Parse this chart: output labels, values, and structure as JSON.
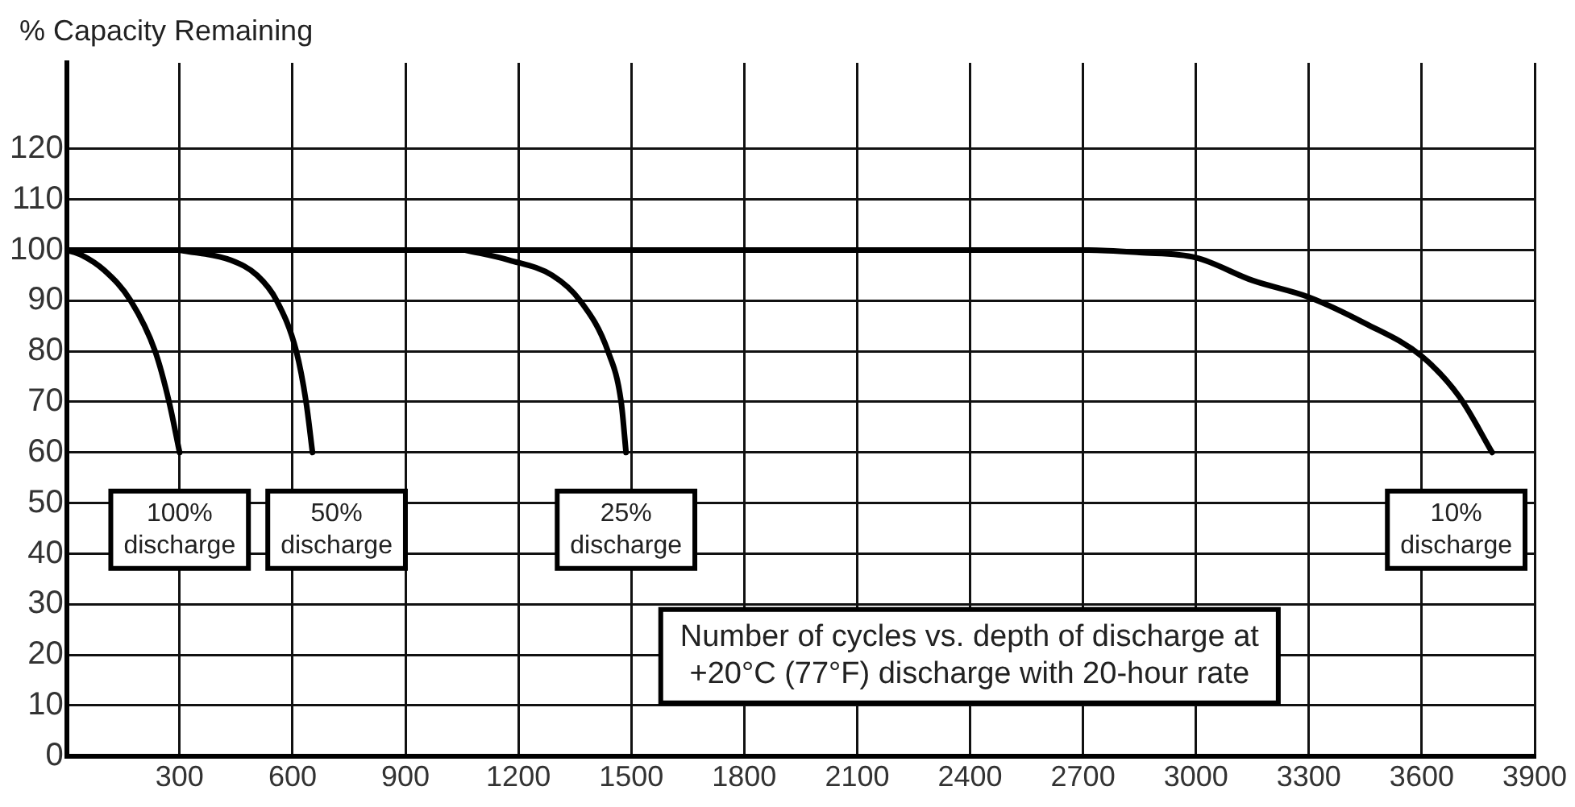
{
  "chart_data": {
    "type": "line",
    "ylabel": "% Capacity Remaining",
    "xlim": [
      0,
      3900
    ],
    "ylim": [
      0,
      137
    ],
    "xticks": [
      {
        "value": 0,
        "label": null
      },
      300,
      600,
      900,
      1200,
      1500,
      1800,
      2100,
      2400,
      2700,
      3000,
      3300,
      3600,
      3900
    ],
    "yticks": [
      0,
      10,
      20,
      30,
      40,
      50,
      60,
      70,
      80,
      90,
      100,
      110,
      120
    ],
    "grid": true,
    "legend": false,
    "marker": "none",
    "line_style": "solid",
    "series": [
      {
        "name": "100% discharge",
        "color": "#000000",
        "x": [
          0,
          40,
          100,
          170,
          235,
          272,
          300
        ],
        "values": [
          100,
          99,
          96,
          90,
          80,
          70,
          60
        ]
      },
      {
        "name": "50% discharge",
        "color": "#000000",
        "x": [
          300,
          436,
          506,
          558,
          610,
          636,
          653
        ],
        "values": [
          100,
          98,
          95,
          90,
          80,
          70,
          60
        ]
      },
      {
        "name": "25% discharge",
        "color": "#000000",
        "x": [
          1059,
          1176,
          1290,
          1364,
          1438,
          1473,
          1486
        ],
        "values": [
          100,
          98,
          95,
          90,
          80,
          70,
          60
        ]
      },
      {
        "name": "10% discharge",
        "color": "#000000",
        "x": [
          0,
          2715,
          2850,
          3000,
          3150,
          3300,
          3450,
          3600,
          3700,
          3787
        ],
        "values": [
          100,
          100,
          99.5,
          98.5,
          94,
          90.7,
          85.5,
          79,
          71,
          60
        ]
      }
    ],
    "annotations": [
      "Number of cycles vs. depth of discharge at +20°C (77°F) discharge with 20-hour rate"
    ]
  }
}
